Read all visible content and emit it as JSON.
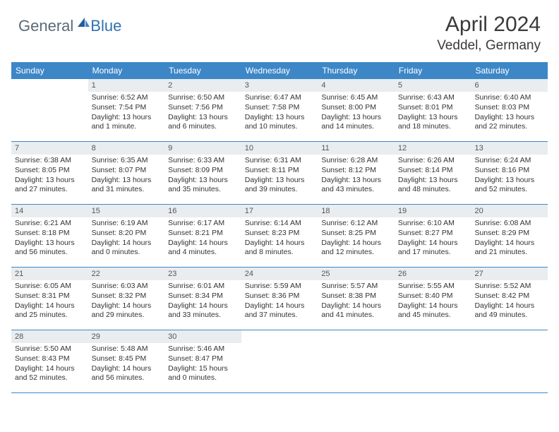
{
  "brand": {
    "part1": "General",
    "part2": "Blue"
  },
  "title": "April 2024",
  "location": "Veddel, Germany",
  "colors": {
    "header_bg": "#3d87c7",
    "header_text": "#ffffff",
    "daynum_bg": "#e9edf0",
    "row_border": "#3d87c7",
    "brand_gray": "#5a6a78",
    "brand_blue": "#2f71b3"
  },
  "weekdays": [
    "Sunday",
    "Monday",
    "Tuesday",
    "Wednesday",
    "Thursday",
    "Friday",
    "Saturday"
  ],
  "weeks": [
    [
      null,
      {
        "n": "1",
        "sr": "6:52 AM",
        "ss": "7:54 PM",
        "dl": "13 hours and 1 minute."
      },
      {
        "n": "2",
        "sr": "6:50 AM",
        "ss": "7:56 PM",
        "dl": "13 hours and 6 minutes."
      },
      {
        "n": "3",
        "sr": "6:47 AM",
        "ss": "7:58 PM",
        "dl": "13 hours and 10 minutes."
      },
      {
        "n": "4",
        "sr": "6:45 AM",
        "ss": "8:00 PM",
        "dl": "13 hours and 14 minutes."
      },
      {
        "n": "5",
        "sr": "6:43 AM",
        "ss": "8:01 PM",
        "dl": "13 hours and 18 minutes."
      },
      {
        "n": "6",
        "sr": "6:40 AM",
        "ss": "8:03 PM",
        "dl": "13 hours and 22 minutes."
      }
    ],
    [
      {
        "n": "7",
        "sr": "6:38 AM",
        "ss": "8:05 PM",
        "dl": "13 hours and 27 minutes."
      },
      {
        "n": "8",
        "sr": "6:35 AM",
        "ss": "8:07 PM",
        "dl": "13 hours and 31 minutes."
      },
      {
        "n": "9",
        "sr": "6:33 AM",
        "ss": "8:09 PM",
        "dl": "13 hours and 35 minutes."
      },
      {
        "n": "10",
        "sr": "6:31 AM",
        "ss": "8:11 PM",
        "dl": "13 hours and 39 minutes."
      },
      {
        "n": "11",
        "sr": "6:28 AM",
        "ss": "8:12 PM",
        "dl": "13 hours and 43 minutes."
      },
      {
        "n": "12",
        "sr": "6:26 AM",
        "ss": "8:14 PM",
        "dl": "13 hours and 48 minutes."
      },
      {
        "n": "13",
        "sr": "6:24 AM",
        "ss": "8:16 PM",
        "dl": "13 hours and 52 minutes."
      }
    ],
    [
      {
        "n": "14",
        "sr": "6:21 AM",
        "ss": "8:18 PM",
        "dl": "13 hours and 56 minutes."
      },
      {
        "n": "15",
        "sr": "6:19 AM",
        "ss": "8:20 PM",
        "dl": "14 hours and 0 minutes."
      },
      {
        "n": "16",
        "sr": "6:17 AM",
        "ss": "8:21 PM",
        "dl": "14 hours and 4 minutes."
      },
      {
        "n": "17",
        "sr": "6:14 AM",
        "ss": "8:23 PM",
        "dl": "14 hours and 8 minutes."
      },
      {
        "n": "18",
        "sr": "6:12 AM",
        "ss": "8:25 PM",
        "dl": "14 hours and 12 minutes."
      },
      {
        "n": "19",
        "sr": "6:10 AM",
        "ss": "8:27 PM",
        "dl": "14 hours and 17 minutes."
      },
      {
        "n": "20",
        "sr": "6:08 AM",
        "ss": "8:29 PM",
        "dl": "14 hours and 21 minutes."
      }
    ],
    [
      {
        "n": "21",
        "sr": "6:05 AM",
        "ss": "8:31 PM",
        "dl": "14 hours and 25 minutes."
      },
      {
        "n": "22",
        "sr": "6:03 AM",
        "ss": "8:32 PM",
        "dl": "14 hours and 29 minutes."
      },
      {
        "n": "23",
        "sr": "6:01 AM",
        "ss": "8:34 PM",
        "dl": "14 hours and 33 minutes."
      },
      {
        "n": "24",
        "sr": "5:59 AM",
        "ss": "8:36 PM",
        "dl": "14 hours and 37 minutes."
      },
      {
        "n": "25",
        "sr": "5:57 AM",
        "ss": "8:38 PM",
        "dl": "14 hours and 41 minutes."
      },
      {
        "n": "26",
        "sr": "5:55 AM",
        "ss": "8:40 PM",
        "dl": "14 hours and 45 minutes."
      },
      {
        "n": "27",
        "sr": "5:52 AM",
        "ss": "8:42 PM",
        "dl": "14 hours and 49 minutes."
      }
    ],
    [
      {
        "n": "28",
        "sr": "5:50 AM",
        "ss": "8:43 PM",
        "dl": "14 hours and 52 minutes."
      },
      {
        "n": "29",
        "sr": "5:48 AM",
        "ss": "8:45 PM",
        "dl": "14 hours and 56 minutes."
      },
      {
        "n": "30",
        "sr": "5:46 AM",
        "ss": "8:47 PM",
        "dl": "15 hours and 0 minutes."
      },
      null,
      null,
      null,
      null
    ]
  ],
  "labels": {
    "sunrise": "Sunrise:",
    "sunset": "Sunset:",
    "daylight": "Daylight:"
  }
}
